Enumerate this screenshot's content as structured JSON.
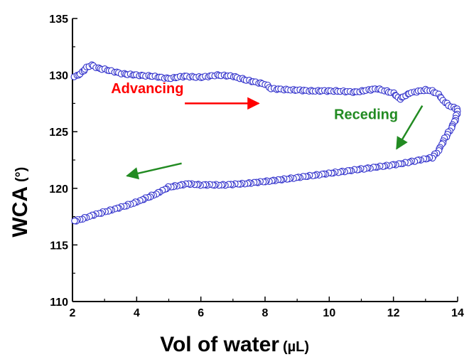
{
  "chart_data": {
    "type": "scatter",
    "title": "",
    "xlabel": "Vol of water",
    "xlabel_unit": "(µL)",
    "ylabel": "WCA",
    "ylabel_unit": "(°)",
    "xlim": [
      2,
      14
    ],
    "ylim": [
      110,
      135
    ],
    "xticks": [
      "2",
      "4",
      "6",
      "8",
      "10",
      "12",
      "14"
    ],
    "yticks": [
      "110",
      "115",
      "120",
      "125",
      "130",
      "135"
    ],
    "grid": false,
    "legend": "none",
    "marker": "open-circle",
    "color": "#3333cc",
    "annotations": [
      {
        "text": "Advancing",
        "color": "#ff0000",
        "x": 3.2,
        "y": 128.4
      },
      {
        "text": "Receding",
        "color": "#228b22",
        "x": 10.15,
        "y": 126.1
      }
    ],
    "arrows": [
      {
        "color": "#ff0000",
        "from": [
          5.5,
          127.5
        ],
        "to": [
          7.8,
          127.5
        ]
      },
      {
        "color": "#228b22",
        "from": [
          12.9,
          127.3
        ],
        "to": [
          12.1,
          123.5
        ]
      },
      {
        "color": "#228b22",
        "from": [
          5.4,
          122.2
        ],
        "to": [
          3.7,
          121.1
        ]
      }
    ],
    "series": [
      {
        "curve_points": [
          [
            2.05,
            129.9
          ],
          [
            2.2,
            130.0
          ],
          [
            2.35,
            130.4
          ],
          [
            2.5,
            130.8
          ],
          [
            2.6,
            130.9
          ],
          [
            2.8,
            130.6
          ],
          [
            3.0,
            130.5
          ],
          [
            3.3,
            130.3
          ],
          [
            3.6,
            130.1
          ],
          [
            4.0,
            130.0
          ],
          [
            4.5,
            129.9
          ],
          [
            5.0,
            129.7
          ],
          [
            5.5,
            129.9
          ],
          [
            6.0,
            129.8
          ],
          [
            6.5,
            130.0
          ],
          [
            7.0,
            129.9
          ],
          [
            7.5,
            129.5
          ],
          [
            8.0,
            129.2
          ],
          [
            8.2,
            128.8
          ],
          [
            8.8,
            128.7
          ],
          [
            9.5,
            128.6
          ],
          [
            10.2,
            128.6
          ],
          [
            10.8,
            128.5
          ],
          [
            11.5,
            128.8
          ],
          [
            12.0,
            128.4
          ],
          [
            12.2,
            127.9
          ],
          [
            12.5,
            128.4
          ],
          [
            13.0,
            128.7
          ],
          [
            13.2,
            128.6
          ],
          [
            13.4,
            128.3
          ],
          [
            13.6,
            127.6
          ],
          [
            13.8,
            127.2
          ],
          [
            14.0,
            127.0
          ],
          [
            13.95,
            126.2
          ],
          [
            13.8,
            125.3
          ],
          [
            13.6,
            124.4
          ],
          [
            13.4,
            123.3
          ],
          [
            13.2,
            122.7
          ],
          [
            12.8,
            122.5
          ],
          [
            12.3,
            122.2
          ],
          [
            11.8,
            122.0
          ],
          [
            11.0,
            121.7
          ],
          [
            10.2,
            121.4
          ],
          [
            9.4,
            121.1
          ],
          [
            8.6,
            120.8
          ],
          [
            8.0,
            120.6
          ],
          [
            7.3,
            120.4
          ],
          [
            6.7,
            120.3
          ],
          [
            6.0,
            120.3
          ],
          [
            5.6,
            120.4
          ],
          [
            5.0,
            120.1
          ],
          [
            4.6,
            119.5
          ],
          [
            4.1,
            118.9
          ],
          [
            3.6,
            118.4
          ],
          [
            3.1,
            118.0
          ],
          [
            2.6,
            117.6
          ],
          [
            2.3,
            117.3
          ],
          [
            2.05,
            117.1
          ]
        ]
      }
    ]
  }
}
